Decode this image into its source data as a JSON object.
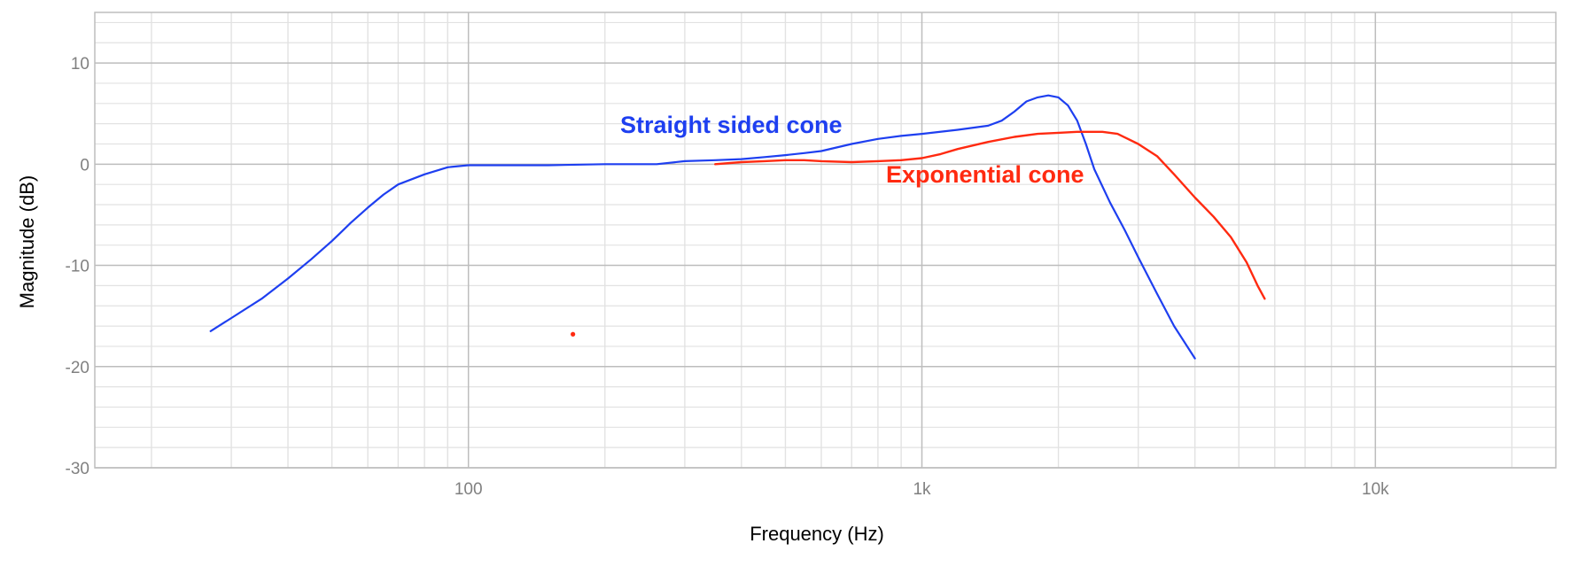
{
  "chart_data": {
    "type": "line",
    "title": "",
    "xlabel": "Frequency (Hz)",
    "ylabel": "Magnitude (dB)",
    "xscale": "log",
    "xlim": [
      15,
      25000
    ],
    "ylim": [
      -30,
      15
    ],
    "x_ticks": [
      {
        "value": 100,
        "label": "100"
      },
      {
        "value": 1000,
        "label": "1k"
      },
      {
        "value": 10000,
        "label": "10k"
      }
    ],
    "y_ticks": [
      {
        "value": 10,
        "label": "10"
      },
      {
        "value": 0,
        "label": "0"
      },
      {
        "value": -10,
        "label": "-10"
      },
      {
        "value": -20,
        "label": "-20"
      },
      {
        "value": -30,
        "label": "-30"
      }
    ],
    "grid": true,
    "legend": "none",
    "series": [
      {
        "name": "Straight sided cone",
        "color": "#1e3ff0",
        "x": [
          27,
          30,
          35,
          40,
          45,
          50,
          55,
          60,
          65,
          70,
          80,
          90,
          100,
          150,
          200,
          260,
          300,
          350,
          400,
          450,
          500,
          550,
          600,
          700,
          800,
          900,
          1000,
          1200,
          1400,
          1500,
          1600,
          1700,
          1800,
          1900,
          2000,
          2100,
          2200,
          2300,
          2400,
          2600,
          2800,
          3000,
          3300,
          3600,
          4000
        ],
        "values": [
          -16.5,
          -15.2,
          -13.3,
          -11.3,
          -9.4,
          -7.6,
          -5.8,
          -4.3,
          -3.0,
          -2.0,
          -1.0,
          -0.3,
          -0.1,
          -0.1,
          0.0,
          0.0,
          0.3,
          0.4,
          0.5,
          0.7,
          0.9,
          1.1,
          1.3,
          2.0,
          2.5,
          2.8,
          3.0,
          3.4,
          3.8,
          4.3,
          5.2,
          6.2,
          6.6,
          6.8,
          6.6,
          5.8,
          4.3,
          2.0,
          -0.5,
          -3.8,
          -6.5,
          -9.2,
          -12.8,
          -16.0,
          -19.2
        ]
      },
      {
        "name": "Exponential cone",
        "color": "#ff2a10",
        "x": [
          350,
          400,
          450,
          500,
          550,
          600,
          700,
          800,
          900,
          1000,
          1100,
          1200,
          1400,
          1600,
          1800,
          2000,
          2200,
          2500,
          2700,
          3000,
          3300,
          3600,
          4000,
          4400,
          4800,
          5200,
          5500,
          5700
        ],
        "values": [
          0.0,
          0.2,
          0.3,
          0.4,
          0.4,
          0.3,
          0.2,
          0.3,
          0.4,
          0.6,
          1.0,
          1.5,
          2.2,
          2.7,
          3.0,
          3.1,
          3.2,
          3.2,
          3.0,
          2.0,
          0.8,
          -1.0,
          -3.3,
          -5.2,
          -7.2,
          -9.7,
          -12.0,
          -13.3
        ]
      },
      {
        "name": "",
        "color": "#ff2a10",
        "x": [
          170
        ],
        "values": [
          -16.8
        ]
      }
    ],
    "annotations": [
      {
        "text": "Straight sided cone",
        "color": "#1e3ff0"
      },
      {
        "text": "Exponential cone",
        "color": "#ff2a10"
      }
    ]
  }
}
